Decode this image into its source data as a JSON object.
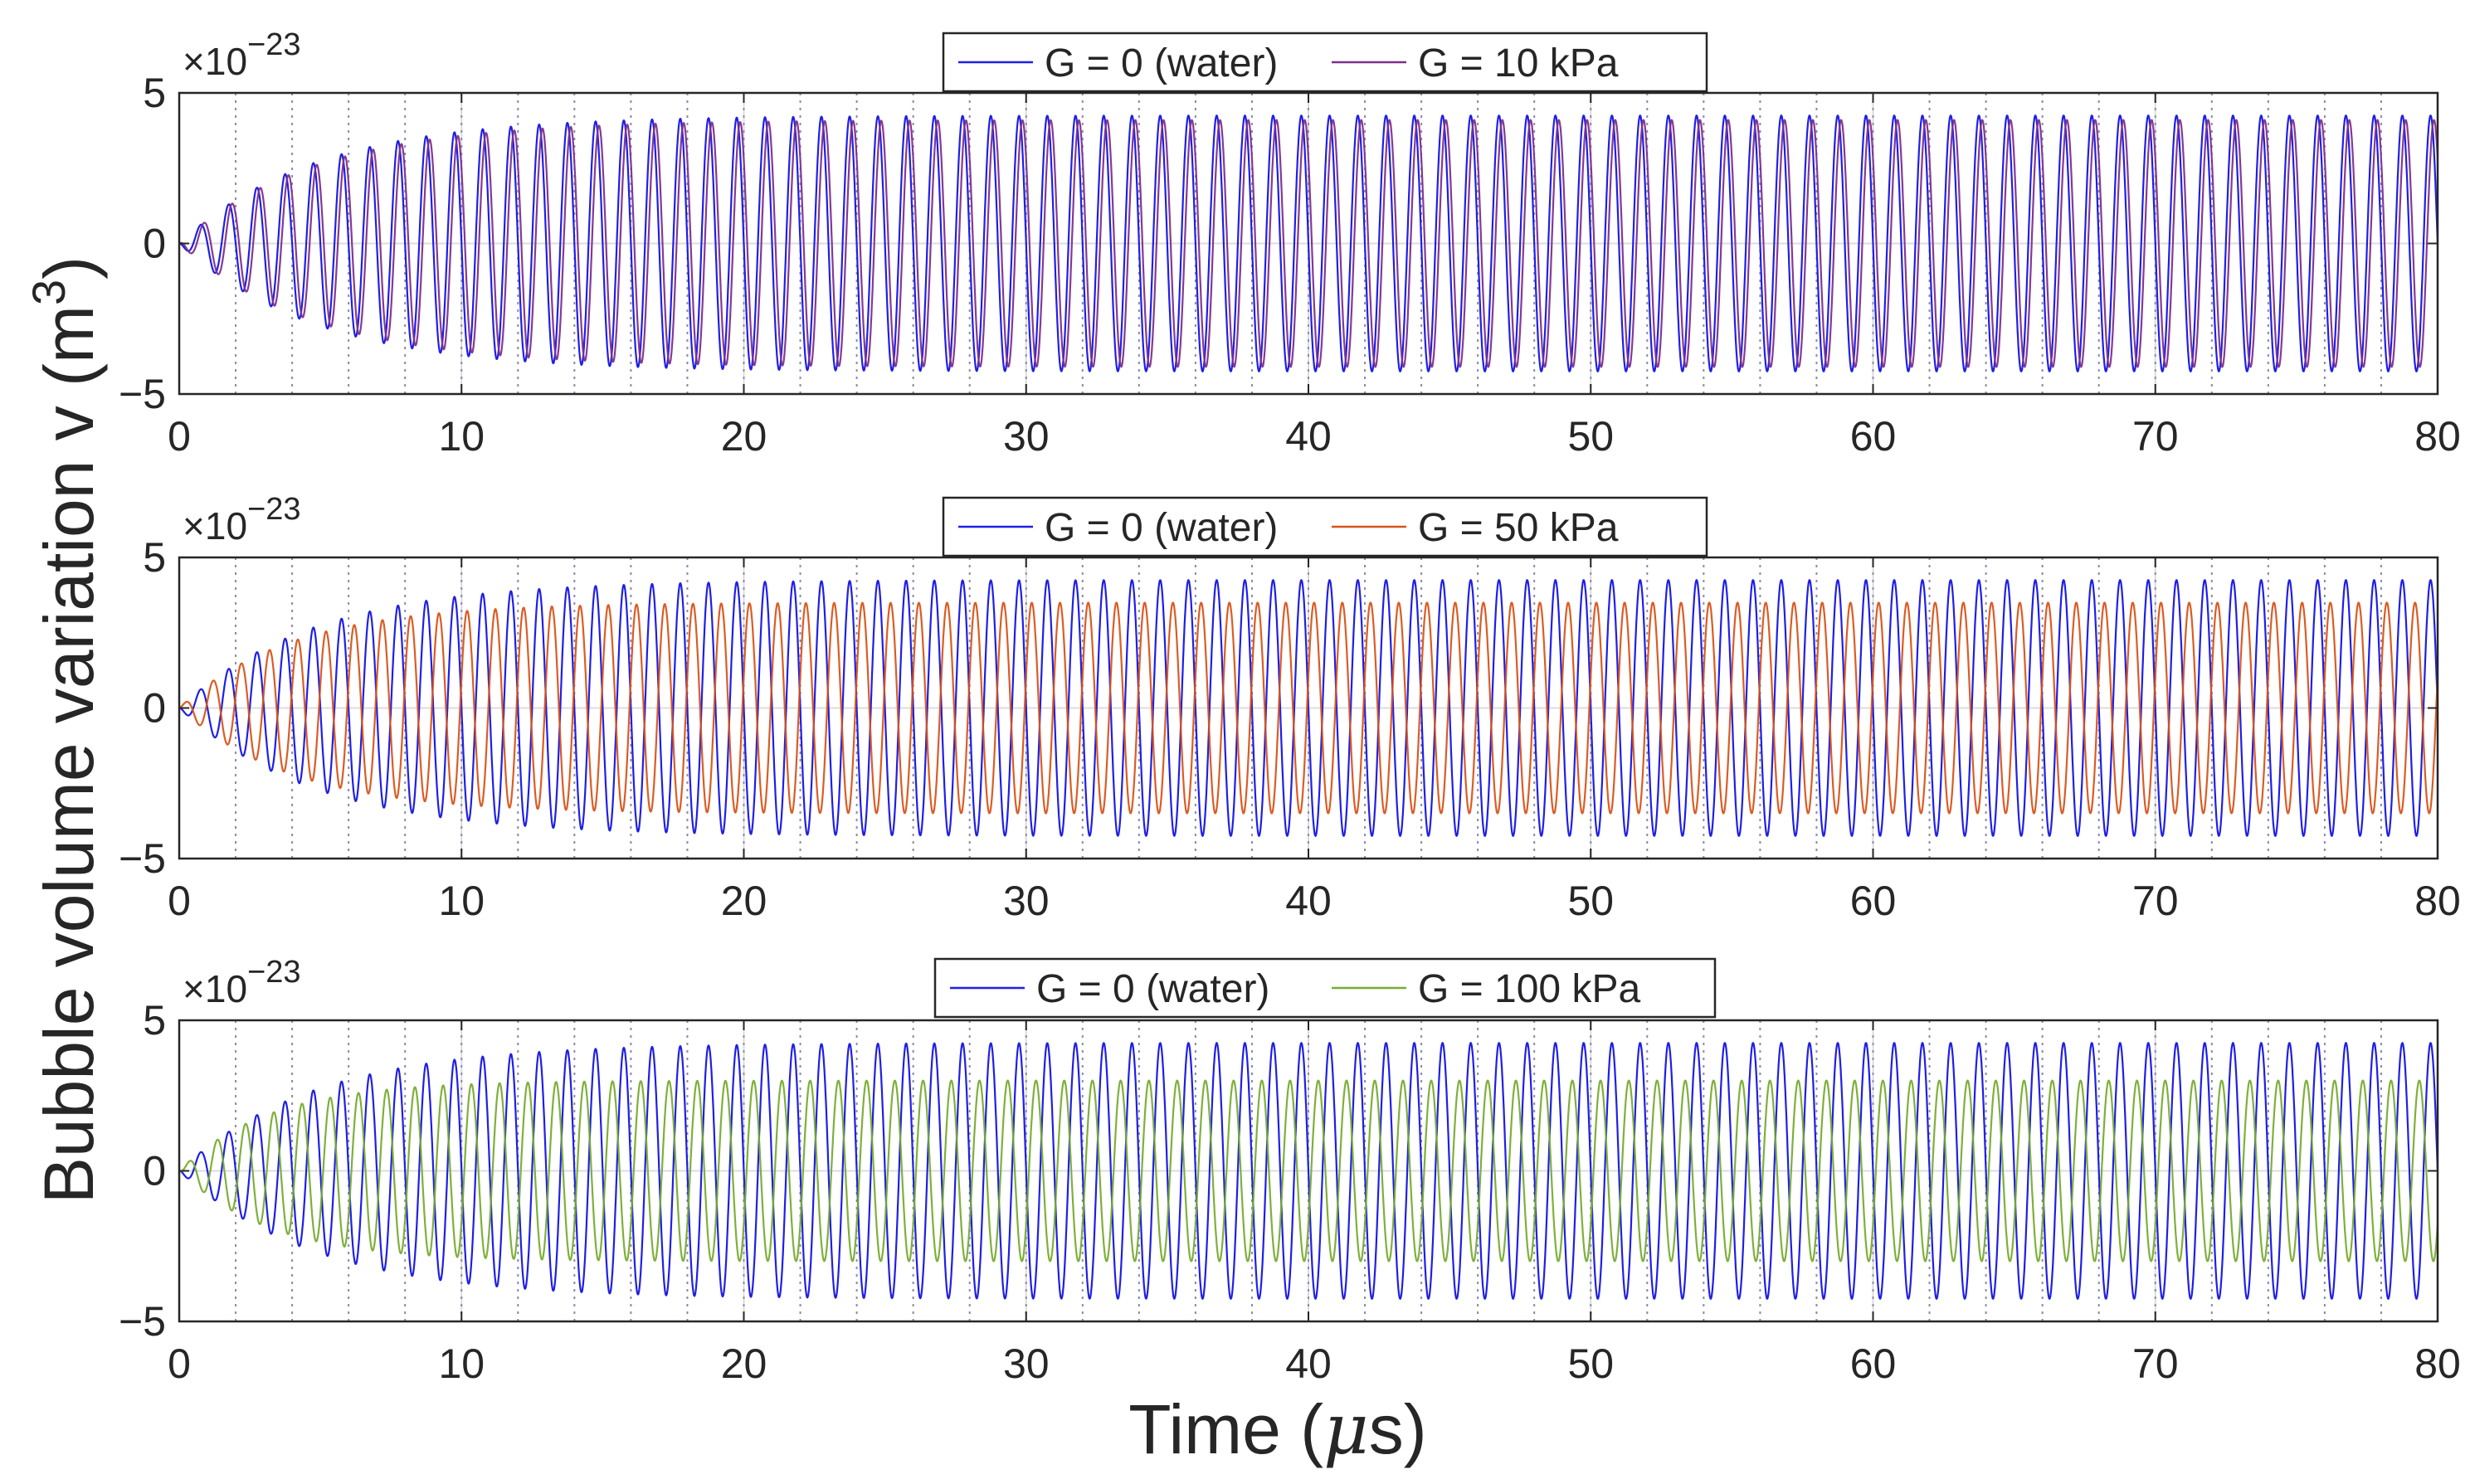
{
  "figure": {
    "ylabel": "Bubble volume variation v (m",
    "ylabel_sup": "3",
    "ylabel_close": ")",
    "xlabel": "Time (",
    "xlabel_mu": "μ",
    "xlabel_unit": "s)"
  },
  "chart_data": [
    {
      "type": "line",
      "title": "",
      "xlabel": "Time (μs)",
      "ylabel": "Bubble volume variation v (m^3)",
      "xlim": [
        0,
        80
      ],
      "ylim": [
        -5,
        5
      ],
      "x_ticks": [
        0,
        10,
        20,
        30,
        40,
        50,
        60,
        70,
        80
      ],
      "y_ticks": [
        -5,
        0,
        5
      ],
      "y_tick_labels": [
        "-5",
        "0",
        "5"
      ],
      "y_exponent_base": "×10",
      "y_exponent": "-23",
      "legend_position": "top-center",
      "series": [
        {
          "name": "G = 0 (water)",
          "color": "#1f1fe6",
          "period_us": 1.0,
          "steady_amplitude": 4.25,
          "rise_time_us": 12.0,
          "phase_shift_us": 0.0
        },
        {
          "name": "G = 10 kPa",
          "color": "#7e2f8e",
          "period_us": 1.0,
          "steady_amplitude": 4.1,
          "rise_time_us": 12.0,
          "phase_shift_us": 0.12
        }
      ],
      "vertical_dotted_lines_us": [
        2,
        4,
        6,
        8,
        10,
        12,
        14,
        16,
        18,
        20,
        22,
        24,
        26,
        28,
        30,
        32,
        34,
        36,
        38,
        40,
        42,
        44,
        46,
        48,
        50,
        52,
        54,
        56,
        58,
        60,
        62,
        64,
        66,
        68,
        70,
        72,
        74,
        76,
        78
      ]
    },
    {
      "type": "line",
      "title": "",
      "xlabel": "Time (μs)",
      "ylabel": "Bubble volume variation v (m^3)",
      "xlim": [
        0,
        80
      ],
      "ylim": [
        -5,
        5
      ],
      "x_ticks": [
        0,
        10,
        20,
        30,
        40,
        50,
        60,
        70,
        80
      ],
      "y_ticks": [
        -5,
        0,
        5
      ],
      "y_tick_labels": [
        "-5",
        "0",
        "5"
      ],
      "y_exponent_base": "×10",
      "y_exponent": "-23",
      "legend_position": "top-center",
      "series": [
        {
          "name": "G = 0 (water)",
          "color": "#1f1fe6",
          "period_us": 1.0,
          "steady_amplitude": 4.25,
          "rise_time_us": 12.0,
          "phase_shift_us": 0.0
        },
        {
          "name": "G = 50 kPa",
          "color": "#d95319",
          "period_us": 1.0,
          "steady_amplitude": 3.5,
          "rise_time_us": 10.0,
          "phase_shift_us": 0.45
        }
      ],
      "vertical_dotted_lines_us": [
        2,
        4,
        6,
        8,
        10,
        12,
        14,
        16,
        18,
        20,
        22,
        24,
        26,
        28,
        30,
        32,
        34,
        36,
        38,
        40,
        42,
        44,
        46,
        48,
        50,
        52,
        54,
        56,
        58,
        60,
        62,
        64,
        66,
        68,
        70,
        72,
        74,
        76,
        78
      ]
    },
    {
      "type": "line",
      "title": "",
      "xlabel": "Time (μs)",
      "ylabel": "Bubble volume variation v (m^3)",
      "xlim": [
        0,
        80
      ],
      "ylim": [
        -5,
        5
      ],
      "x_ticks": [
        0,
        10,
        20,
        30,
        40,
        50,
        60,
        70,
        80
      ],
      "y_ticks": [
        -5,
        0,
        5
      ],
      "y_tick_labels": [
        "-5",
        "0",
        "5"
      ],
      "y_exponent_base": "×10",
      "y_exponent": "-23",
      "legend_position": "top-center",
      "series": [
        {
          "name": "G = 0 (water)",
          "color": "#1f1fe6",
          "period_us": 1.0,
          "steady_amplitude": 4.25,
          "rise_time_us": 12.0,
          "phase_shift_us": 0.0
        },
        {
          "name": "G = 100 kPa",
          "color": "#77ac30",
          "period_us": 1.0,
          "steady_amplitude": 3.0,
          "rise_time_us": 8.0,
          "phase_shift_us": 0.6
        }
      ],
      "vertical_dotted_lines_us": [
        2,
        4,
        6,
        8,
        10,
        12,
        14,
        16,
        18,
        20,
        22,
        24,
        26,
        28,
        30,
        32,
        34,
        36,
        38,
        40,
        42,
        44,
        46,
        48,
        50,
        52,
        54,
        56,
        58,
        60,
        62,
        64,
        66,
        68,
        70,
        72,
        74,
        76,
        78
      ]
    }
  ]
}
